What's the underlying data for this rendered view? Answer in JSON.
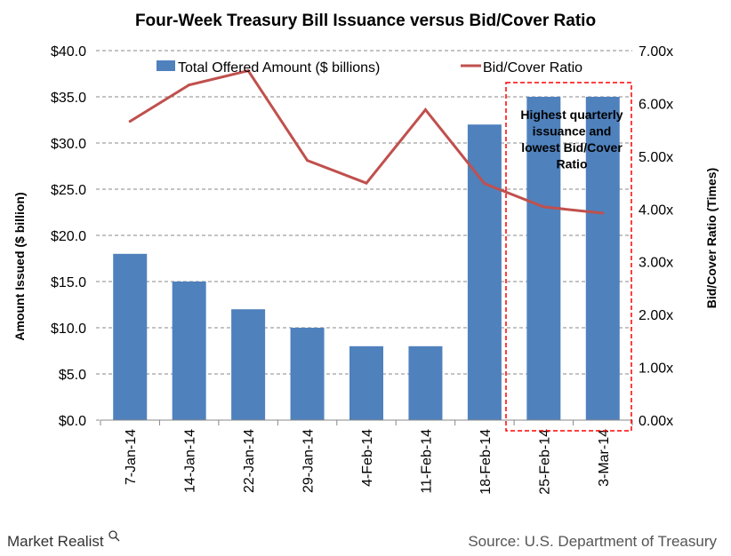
{
  "chart_data": {
    "type": "bar+line",
    "title": "Four-Week Treasury Bill Issuance versus Bid/Cover Ratio",
    "categories": [
      "7-Jan-14",
      "14-Jan-14",
      "22-Jan-14",
      "29-Jan-14",
      "4-Feb-14",
      "11-Feb-14",
      "18-Feb-14",
      "25-Feb-14",
      "3-Mar-14"
    ],
    "series": [
      {
        "name": "Total Offered Amount ($ billions)",
        "type": "bar",
        "axis": "left",
        "color": "#4F81BD",
        "values": [
          18,
          15,
          12,
          10,
          8,
          8,
          32,
          35,
          35
        ]
      },
      {
        "name": "Bid/Cover Ratio",
        "type": "line",
        "axis": "right",
        "color": "#C0504D",
        "values": [
          5.66,
          6.35,
          6.62,
          4.92,
          4.49,
          5.88,
          4.48,
          4.04,
          3.92
        ]
      }
    ],
    "ylabel": "Amount Issued ($ billion)",
    "y2label": "Bid/Cover Ratio (Times)",
    "ylim": [
      0,
      40
    ],
    "y2lim": [
      0,
      7
    ],
    "yticks": [
      "$0.0",
      "$5.0",
      "$10.0",
      "$15.0",
      "$20.0",
      "$25.0",
      "$30.0",
      "$35.0",
      "$40.0"
    ],
    "y2ticks": [
      "0.00x",
      "1.00x",
      "2.00x",
      "3.00x",
      "4.00x",
      "5.00x",
      "6.00x",
      "7.00x"
    ],
    "grid": true,
    "legend": "top",
    "annotation": {
      "lines": [
        "Highest quarterly",
        "issuance and",
        "lowest Bid/Cover",
        "Ratio"
      ],
      "color": "#FF0000",
      "covers": [
        "25-Feb-14",
        "3-Mar-14"
      ]
    }
  },
  "footer": {
    "brand": "Market Realist",
    "source": "Source: U.S. Department of Treasury"
  }
}
